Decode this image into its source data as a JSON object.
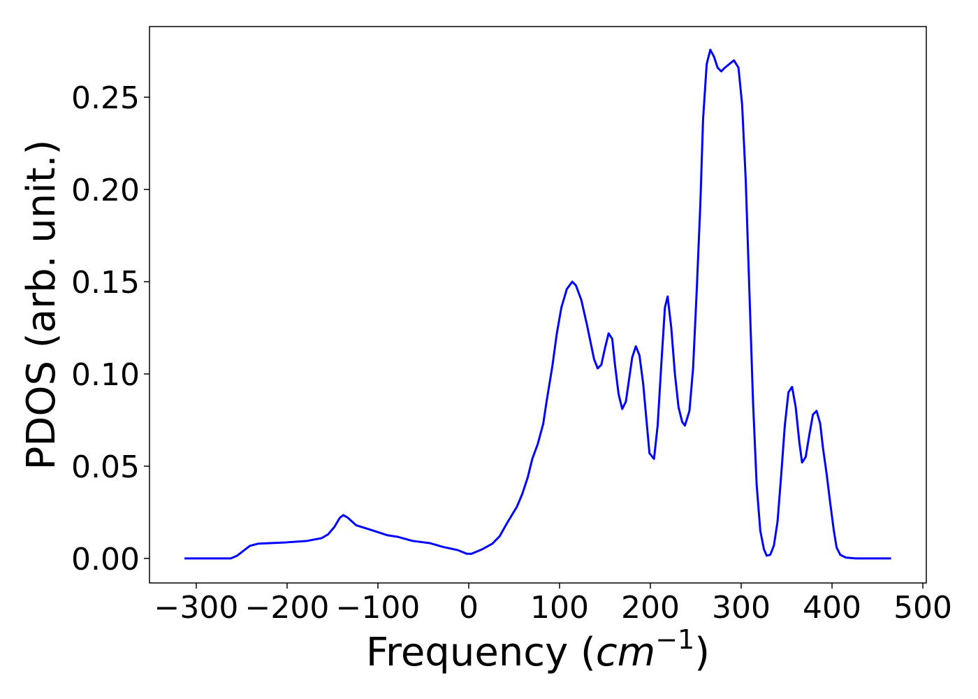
{
  "chart_data": {
    "type": "line",
    "xlabel": [
      "Frequency (",
      "cm",
      "−1",
      ")"
    ],
    "ylabel": "PDOS (arb. unit.)",
    "x": [
      -313,
      -262,
      -255,
      -241,
      -232,
      -201,
      -178,
      -162,
      -155,
      -148,
      -142,
      -138,
      -133,
      -124,
      -108,
      -89,
      -78,
      -62,
      -43,
      -28,
      -12,
      -2,
      3,
      15,
      26,
      34,
      42,
      53,
      59,
      65,
      70,
      76,
      82,
      86,
      92,
      97,
      102,
      108,
      114,
      118,
      124,
      130,
      138,
      142,
      146,
      150,
      154,
      158,
      161,
      165,
      169,
      173,
      180,
      184,
      188,
      192,
      199,
      204,
      208,
      212,
      216,
      219,
      223,
      227,
      231,
      235,
      238,
      243,
      247,
      251,
      255,
      258,
      262,
      266,
      270,
      274,
      278,
      282,
      287,
      292,
      297,
      301,
      305,
      309,
      313,
      317,
      321,
      325,
      328,
      332,
      336,
      340,
      344,
      348,
      352,
      356,
      360,
      364,
      367,
      371,
      375,
      379,
      383,
      387,
      390,
      394,
      398,
      402,
      405,
      409,
      415,
      426,
      465
    ],
    "series": [
      {
        "name": "PDOS",
        "color": "#0000ff",
        "values": [
          0,
          0,
          0.0015,
          0.0068,
          0.008,
          0.0087,
          0.0095,
          0.011,
          0.013,
          0.017,
          0.022,
          0.0235,
          0.022,
          0.018,
          0.0155,
          0.0125,
          0.0117,
          0.0095,
          0.0083,
          0.0062,
          0.0045,
          0.0025,
          0.0025,
          0.005,
          0.008,
          0.012,
          0.019,
          0.028,
          0.035,
          0.044,
          0.054,
          0.062,
          0.073,
          0.086,
          0.104,
          0.122,
          0.136,
          0.146,
          0.15,
          0.148,
          0.14,
          0.127,
          0.108,
          0.103,
          0.105,
          0.114,
          0.122,
          0.119,
          0.105,
          0.089,
          0.081,
          0.085,
          0.109,
          0.115,
          0.11,
          0.095,
          0.057,
          0.054,
          0.072,
          0.105,
          0.136,
          0.142,
          0.125,
          0.1,
          0.082,
          0.074,
          0.072,
          0.08,
          0.103,
          0.145,
          0.192,
          0.238,
          0.268,
          0.2757,
          0.272,
          0.266,
          0.264,
          0.266,
          0.268,
          0.27,
          0.266,
          0.246,
          0.205,
          0.145,
          0.085,
          0.04,
          0.015,
          0.005,
          0.0015,
          0.002,
          0.007,
          0.02,
          0.045,
          0.072,
          0.09,
          0.093,
          0.082,
          0.063,
          0.052,
          0.055,
          0.067,
          0.078,
          0.08,
          0.073,
          0.06,
          0.046,
          0.03,
          0.015,
          0.006,
          0.002,
          0.0005,
          0,
          0
        ]
      }
    ],
    "xlim": [
      -351.5,
      503.8
    ],
    "ylim": [
      -0.0133,
      0.2883
    ],
    "xticks": [
      {
        "value": -300,
        "label": "−300"
      },
      {
        "value": -200,
        "label": "−200"
      },
      {
        "value": -100,
        "label": "−100"
      },
      0,
      100,
      200,
      300,
      400,
      500
    ],
    "yticks": [
      {
        "value": 0,
        "label": "0.00"
      },
      {
        "value": 0.05,
        "label": "0.05"
      },
      {
        "value": 0.1,
        "label": "0.10"
      },
      {
        "value": 0.15,
        "label": "0.15"
      },
      {
        "value": 0.2,
        "label": "0.20"
      },
      {
        "value": 0.25,
        "label": "0.25"
      }
    ],
    "grid": false
  }
}
